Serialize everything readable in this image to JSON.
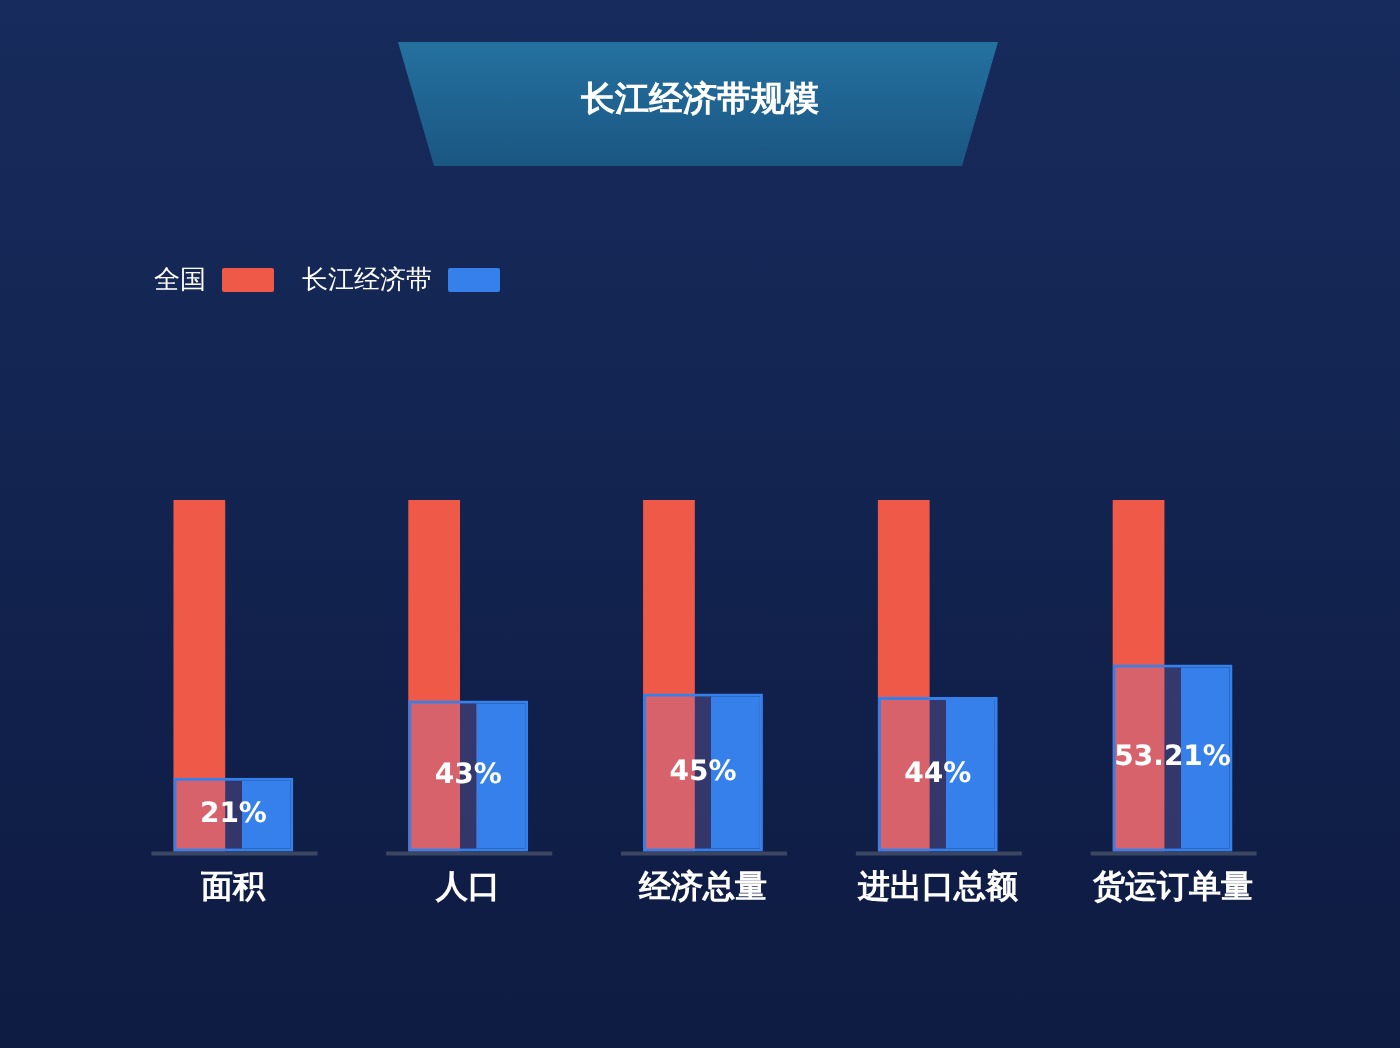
{
  "chart_data": {
    "type": "bar",
    "title": "长江经济带规模",
    "categories": [
      "面积",
      "人口",
      "经济总量",
      "进出口总额",
      "货运订单量"
    ],
    "series": [
      {
        "name": "全国",
        "color": "#ef5a48",
        "values": [
          100,
          100,
          100,
          100,
          100
        ]
      },
      {
        "name": "长江经济带",
        "color": "#3580ea",
        "values": [
          21,
          43,
          45,
          44,
          53.21
        ],
        "value_labels": [
          "21%",
          "43%",
          "45%",
          "44%",
          "53.21%"
        ]
      }
    ],
    "legend": "top left",
    "grid": false
  }
}
